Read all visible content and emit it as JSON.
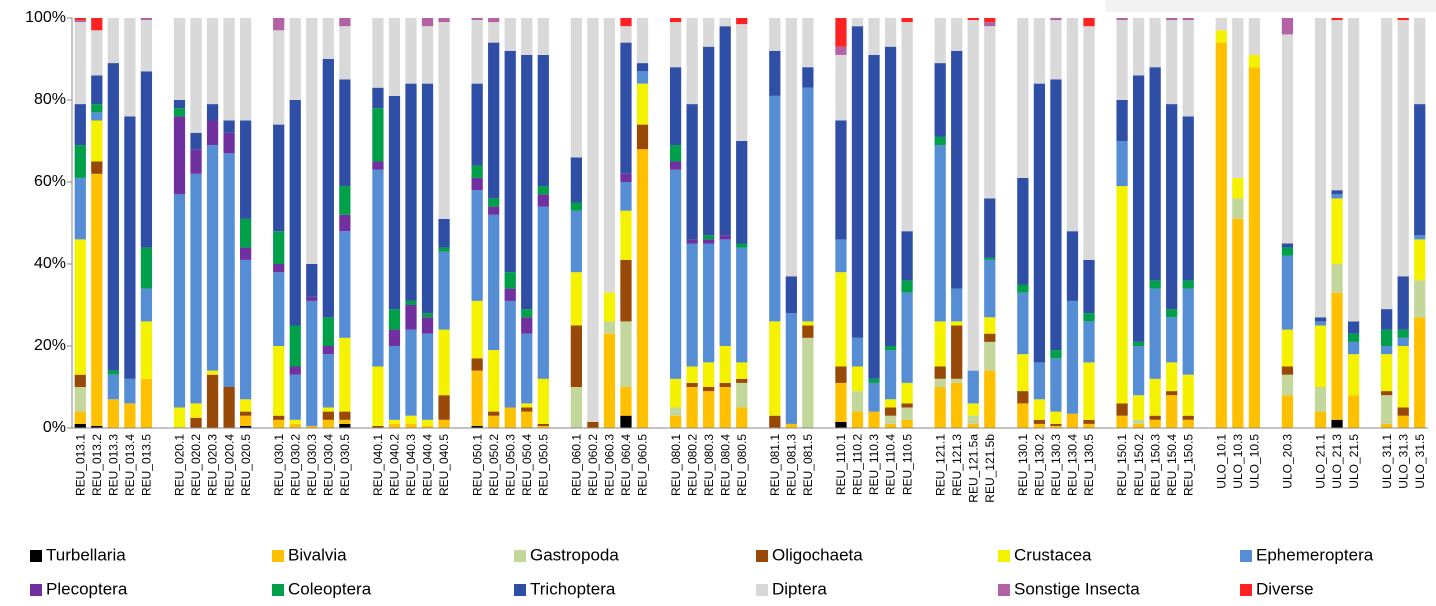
{
  "chart_data": {
    "type": "stacked_bar",
    "categories": [
      "REU_013.1",
      "REU_013.2",
      "REU_013.3",
      "REU_013.4",
      "REU_013.5",
      null,
      "REU_020.1",
      "REU_020.2",
      "REU_020.3",
      "REU_020.4",
      "REU_020.5",
      null,
      "REU_030.1",
      "REU_030.2",
      "REU_030.3",
      "REU_030.4",
      "REU_030.5",
      null,
      "REU_040.1",
      "REU_040.2",
      "REU_040.3",
      "REU_040.4",
      "REU_040.5",
      null,
      "REU_050.1",
      "REU_050.2",
      "REU_050.3",
      "REU_050.4",
      "REU_050.5",
      null,
      "REU_060.1",
      "REU_060.2",
      "REU_060.3",
      "REU_060.4",
      "REU_060.5",
      null,
      "REU_080.1",
      "REU_080.2",
      "REU_080.3",
      "REU_080.4",
      "REU_080.5",
      null,
      "REU_081.1",
      "REU_081.3",
      "REU_081.5",
      null,
      "REU_110.1",
      "REU_110.2",
      "REU_110.3",
      "REU_110.4",
      "REU_110.5",
      null,
      "REU_121.1",
      "REU_121.3",
      "REU_121.5a",
      "REU_121.5b",
      null,
      "REU_130.1",
      "REU_130.2",
      "REU_130.3",
      "REU_130.4",
      "REU_130.5",
      null,
      "REU_150.1",
      "REU_150.2",
      "REU_150.3",
      "REU_150.4",
      "REU_150.5",
      null,
      "ULO_10.1",
      "ULO_10.3",
      "ULO_10.5",
      null,
      "ULO_20.3",
      null,
      "ULO_21.1",
      "ULO_21.3",
      "ULO_21.5",
      null,
      "ULO_31.1",
      "ULO_31.3",
      "ULO_31.5"
    ],
    "series": [
      {
        "name": "Turbellaria",
        "color": "#000000",
        "values": [
          1,
          0.5,
          0,
          0,
          0,
          null,
          0,
          0,
          0,
          0,
          0.5,
          null,
          0,
          0,
          0,
          0,
          1,
          null,
          0,
          0,
          0,
          0,
          0,
          null,
          0.5,
          0,
          0,
          0,
          0,
          null,
          0,
          0,
          0,
          3,
          0,
          null,
          0,
          0,
          0,
          0,
          0,
          null,
          0,
          0,
          0,
          null,
          1.5,
          0,
          0,
          0,
          0,
          null,
          0,
          0,
          0,
          0,
          null,
          0,
          0,
          0,
          0,
          0,
          null,
          0,
          0,
          0,
          0,
          0,
          null,
          0,
          0,
          0,
          null,
          0,
          null,
          0,
          2,
          0,
          null,
          0,
          0,
          0
        ]
      },
      {
        "name": "Bivalvia",
        "color": "#ffc000",
        "values": [
          3,
          61.5,
          7,
          6,
          12,
          null,
          0,
          0,
          0,
          0,
          2.5,
          null,
          2,
          1,
          0.5,
          2,
          1,
          null,
          0,
          1,
          1,
          0.5,
          2,
          null,
          13.5,
          3,
          5,
          4,
          0.5,
          null,
          0,
          0,
          23,
          7,
          68,
          null,
          3,
          10,
          9,
          10,
          5,
          null,
          0,
          1,
          0,
          null,
          9.5,
          4,
          4,
          1,
          2,
          null,
          10,
          11,
          1,
          14,
          null,
          6,
          1,
          0.5,
          3.5,
          1,
          null,
          3,
          1,
          2,
          8,
          2,
          null,
          94,
          51,
          88,
          null,
          8,
          null,
          4,
          31,
          8,
          null,
          1,
          3,
          27
        ]
      },
      {
        "name": "Gastropoda",
        "color": "#c4d79b",
        "values": [
          6,
          0,
          0,
          0,
          0,
          null,
          0,
          0,
          0,
          0,
          0,
          null,
          0,
          0,
          0,
          0,
          0,
          null,
          0,
          0,
          0,
          0,
          0,
          null,
          0,
          0,
          0,
          0,
          0,
          null,
          10,
          0,
          3,
          16,
          0,
          null,
          2,
          0,
          0,
          0,
          6,
          null,
          0,
          0,
          22,
          null,
          0,
          5,
          0,
          2,
          3,
          null,
          2,
          1,
          2,
          7,
          null,
          0,
          0,
          0,
          0,
          0,
          null,
          0,
          1,
          0,
          0,
          0,
          null,
          0,
          5,
          0,
          null,
          5,
          null,
          6,
          7,
          0,
          null,
          7,
          0,
          9
        ]
      },
      {
        "name": "Oligochaeta",
        "color": "#984807",
        "values": [
          3,
          3,
          0,
          0,
          0,
          null,
          0,
          2.5,
          13,
          10,
          1,
          null,
          1,
          0,
          0,
          2,
          2,
          null,
          0.5,
          0,
          0,
          0,
          6,
          null,
          3,
          1,
          0,
          1,
          0.5,
          null,
          15,
          1.5,
          0,
          15,
          6,
          null,
          0,
          1,
          1,
          1,
          1,
          null,
          3,
          0,
          3,
          null,
          4,
          0,
          0,
          2,
          1,
          null,
          3,
          13,
          0,
          2,
          null,
          3,
          1,
          0.5,
          0,
          1,
          null,
          3,
          0,
          1,
          1,
          1,
          null,
          0,
          0,
          0,
          null,
          2,
          null,
          0,
          0,
          0,
          null,
          1,
          2,
          0
        ]
      },
      {
        "name": "Crustacea",
        "color": "#f5f200",
        "values": [
          33,
          10,
          0,
          0,
          14,
          null,
          5,
          3.5,
          1,
          0,
          3,
          null,
          17,
          1,
          0,
          1,
          18,
          null,
          14.5,
          1,
          2,
          1.5,
          16,
          null,
          14,
          15,
          0,
          1,
          11,
          null,
          13,
          0,
          7,
          12,
          10,
          null,
          7,
          4,
          6,
          9,
          4,
          null,
          23,
          0,
          1,
          null,
          23,
          6,
          0,
          2,
          5,
          null,
          11,
          1,
          3,
          4,
          null,
          9,
          5,
          3,
          0,
          14,
          null,
          53,
          6,
          9,
          7,
          10,
          null,
          3,
          5,
          3,
          null,
          9,
          null,
          15,
          16,
          10,
          null,
          9,
          15,
          10
        ]
      },
      {
        "name": "Ephemeroptera",
        "color": "#558ed5",
        "values": [
          15,
          2,
          6,
          6,
          8,
          null,
          52,
          56,
          55,
          57,
          34,
          null,
          18,
          11,
          30.5,
          13,
          26,
          null,
          48,
          18,
          21,
          21,
          19,
          null,
          27,
          33,
          26,
          17,
          42,
          null,
          15,
          0,
          0,
          7,
          3,
          null,
          51,
          30,
          29,
          26,
          28,
          null,
          55,
          27,
          57,
          null,
          8,
          7,
          7,
          12,
          22,
          null,
          43,
          8,
          8,
          14,
          null,
          15,
          9,
          13,
          27.5,
          10,
          null,
          11,
          12,
          22,
          11,
          21,
          null,
          0,
          0,
          0,
          null,
          18,
          null,
          1,
          1,
          3,
          null,
          2,
          2,
          1
        ]
      },
      {
        "name": "Plecoptera",
        "color": "#7030a0",
        "values": [
          0,
          0,
          0,
          0,
          0,
          null,
          19,
          6,
          6,
          5,
          3,
          null,
          2,
          2,
          1,
          2,
          4,
          null,
          2,
          4,
          6,
          4,
          0,
          null,
          3,
          2,
          3,
          4,
          3,
          null,
          0,
          0,
          0,
          2,
          0,
          null,
          2,
          1,
          1,
          1,
          0,
          null,
          0,
          0,
          0,
          null,
          0,
          0,
          0,
          0,
          0,
          null,
          0,
          0,
          0,
          0,
          null,
          0,
          0,
          0,
          0,
          0,
          null,
          0,
          0,
          0,
          0,
          0,
          null,
          0,
          0,
          0,
          null,
          0,
          null,
          0,
          0,
          0,
          null,
          0,
          0,
          0
        ]
      },
      {
        "name": "Coleoptera",
        "color": "#00a04a",
        "values": [
          8,
          2,
          1,
          0,
          10,
          null,
          2,
          0,
          0,
          0,
          7,
          null,
          8,
          10,
          0,
          7,
          7,
          null,
          13,
          5,
          1,
          1,
          1,
          null,
          3,
          2,
          4,
          2,
          2,
          null,
          2,
          0,
          0,
          0,
          0,
          null,
          4,
          0,
          1,
          0,
          1,
          null,
          0,
          0,
          0,
          null,
          0,
          0,
          1,
          1,
          3,
          null,
          2,
          0,
          0,
          0.5,
          null,
          2,
          0,
          2,
          0,
          2,
          null,
          0,
          1,
          2,
          2,
          2,
          null,
          0,
          0,
          0,
          null,
          2,
          null,
          0,
          0,
          2,
          null,
          4,
          2,
          0
        ]
      },
      {
        "name": "Trichoptera",
        "color": "#2f4fa6",
        "values": [
          10,
          7,
          75,
          64,
          43,
          null,
          2,
          4,
          4,
          3,
          24,
          null,
          26,
          55,
          8,
          63,
          26,
          null,
          5,
          52,
          53,
          56,
          7,
          null,
          20,
          38,
          54,
          62,
          32,
          null,
          11,
          0,
          0,
          32,
          2,
          null,
          19,
          33,
          46,
          51,
          25,
          null,
          11,
          9,
          5,
          null,
          29,
          76,
          79,
          73,
          12,
          null,
          18,
          58,
          0,
          14.5,
          null,
          26,
          68,
          66,
          17,
          13,
          null,
          10,
          65,
          52,
          50,
          40,
          null,
          0,
          0,
          0,
          null,
          1,
          null,
          1,
          1,
          3,
          null,
          5,
          13,
          32
        ]
      },
      {
        "name": "Diptera",
        "color": "#d9d9d9",
        "values": [
          20,
          11,
          11,
          24,
          12.5,
          null,
          20,
          28,
          21,
          25,
          25,
          null,
          23,
          20,
          60,
          10,
          13,
          null,
          17,
          19,
          16,
          14,
          48,
          null,
          15.5,
          5,
          8,
          9,
          9,
          null,
          34,
          98.5,
          67,
          4,
          11,
          null,
          11,
          21,
          7,
          2,
          28.5,
          null,
          8,
          63,
          12,
          null,
          16,
          2,
          9,
          7,
          51,
          null,
          11,
          8,
          85.5,
          42,
          null,
          39,
          16,
          14.5,
          52,
          57,
          null,
          19.5,
          14,
          12,
          20.5,
          23.5,
          null,
          3,
          39,
          9,
          null,
          51,
          null,
          73,
          41.5,
          74,
          null,
          71,
          62.5,
          21
        ]
      },
      {
        "name": "Sonstige Insecta",
        "color": "#b462a6",
        "values": [
          0.5,
          0,
          0,
          0,
          0.5,
          null,
          0,
          0,
          0,
          0,
          0,
          null,
          3,
          0,
          0,
          0,
          2,
          null,
          0,
          0,
          0,
          2,
          1,
          null,
          0.5,
          1,
          0,
          0,
          0,
          null,
          0,
          0,
          0,
          0,
          0,
          null,
          0,
          0,
          0,
          0,
          0,
          null,
          0,
          0,
          0,
          null,
          2,
          0,
          0,
          0,
          0,
          null,
          0,
          0,
          0,
          1,
          null,
          0,
          0,
          0.5,
          0,
          0,
          null,
          0.5,
          0,
          0,
          0.5,
          0.5,
          null,
          0,
          0,
          0,
          null,
          4,
          null,
          0,
          0,
          0,
          null,
          0,
          0,
          0
        ]
      },
      {
        "name": "Diverse",
        "color": "#ff2222",
        "values": [
          0.5,
          3,
          0,
          0,
          0,
          null,
          0,
          0,
          0,
          0,
          0,
          null,
          0,
          0,
          0,
          0,
          0,
          null,
          0,
          0,
          0,
          0,
          0,
          null,
          0,
          0,
          0,
          0,
          0,
          null,
          0,
          0,
          0,
          2,
          0,
          null,
          1,
          0,
          0,
          0,
          1.5,
          null,
          0,
          0,
          0,
          null,
          7,
          0,
          0,
          0,
          1,
          null,
          0,
          0,
          0.5,
          1,
          null,
          0,
          0,
          0,
          0,
          2,
          null,
          0,
          0,
          0,
          0,
          0,
          null,
          0,
          0,
          0,
          null,
          0,
          null,
          0,
          0.5,
          0,
          null,
          0,
          0.5,
          0
        ]
      }
    ],
    "ylim": [
      0,
      100
    ],
    "yticks": [
      {
        "value": 0,
        "label": "0%"
      },
      {
        "value": 20,
        "label": "20%"
      },
      {
        "value": 40,
        "label": "40%"
      },
      {
        "value": 60,
        "label": "60%"
      },
      {
        "value": 80,
        "label": "80%"
      },
      {
        "value": 100,
        "label": "100%"
      }
    ],
    "grid": false,
    "legend": "bottom"
  }
}
